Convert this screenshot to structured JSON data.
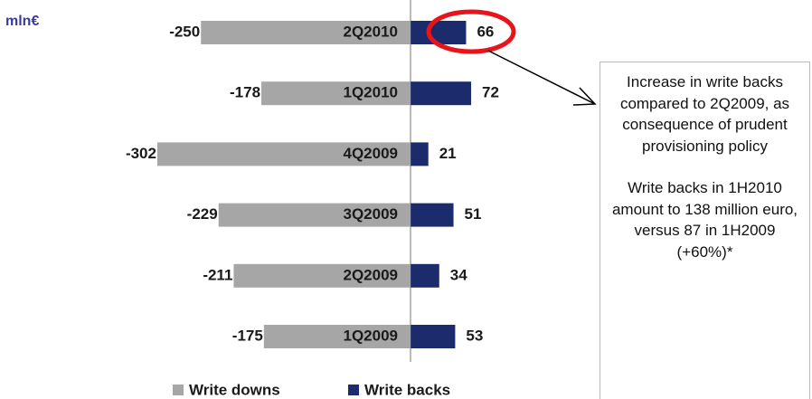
{
  "chart_data": {
    "type": "bar",
    "orientation": "horizontal",
    "unit_label": "mln€",
    "categories": [
      "2Q2010",
      "1Q2010",
      "4Q2009",
      "3Q2009",
      "2Q2009",
      "1Q2009"
    ],
    "series": [
      {
        "name": "Write downs",
        "color": "#a6a6a6",
        "values": [
          -250,
          -178,
          -302,
          -229,
          -211,
          -175
        ]
      },
      {
        "name": "Write backs",
        "color": "#1c2b6b",
        "values": [
          66,
          72,
          21,
          51,
          34,
          53
        ]
      }
    ],
    "xlim": [
      -330,
      100
    ],
    "legend": "bottom",
    "annotation": [
      "Increase in write backs compared to 2Q2009, as consequence of prudent provisioning policy",
      "Write backs in 1H2010 amount to 138 million euro, versus 87 in 1H2009 (+60%)*"
    ]
  }
}
